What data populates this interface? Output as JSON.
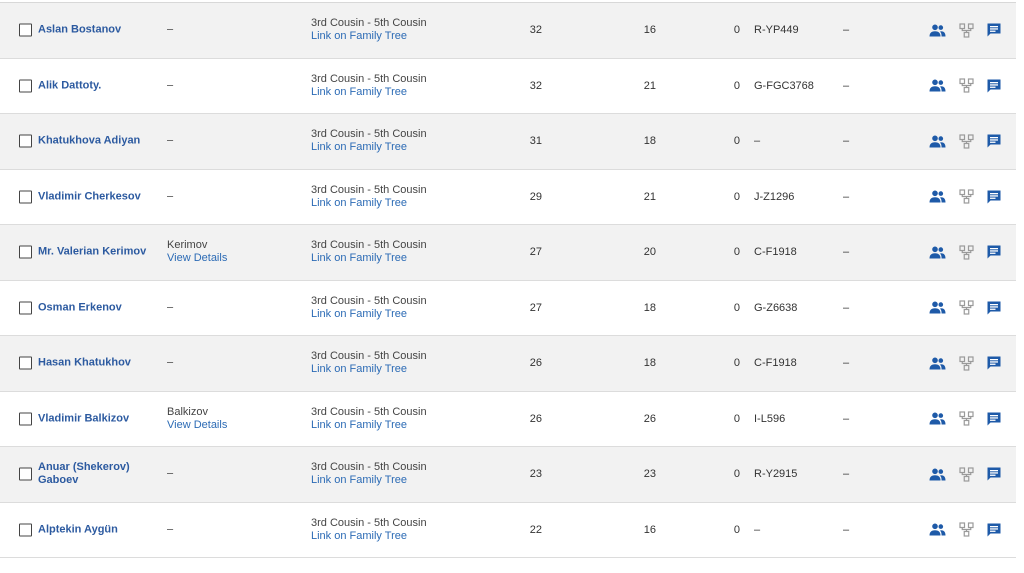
{
  "icons": {
    "people": "people-icon",
    "tree": "tree-icon",
    "message": "message-icon"
  },
  "colors": {
    "name_link": "#2c5aa0",
    "link": "#2c6bb5",
    "icon_blue": "#1e5aa8",
    "icon_gray": "#9a9a9a",
    "row_alt": "#f2f2f2"
  },
  "rows": [
    {
      "name": "Aslan Bostanov",
      "mgmt_dash": "–",
      "mgmt_surname": "",
      "mgmt_link": "",
      "relationship": "3rd Cousin - 5th Cousin",
      "rel_link": "Link on Family Tree",
      "v1": "32",
      "v2": "16",
      "v3": "0",
      "haplogroup": "R-YP449",
      "extra": "–"
    },
    {
      "name": "Alik Dattoty.",
      "mgmt_dash": "–",
      "mgmt_surname": "",
      "mgmt_link": "",
      "relationship": "3rd Cousin - 5th Cousin",
      "rel_link": "Link on Family Tree",
      "v1": "32",
      "v2": "21",
      "v3": "0",
      "haplogroup": "G-FGC3768",
      "extra": "–"
    },
    {
      "name": "Khatukhova Adiyan",
      "mgmt_dash": "–",
      "mgmt_surname": "",
      "mgmt_link": "",
      "relationship": "3rd Cousin - 5th Cousin",
      "rel_link": "Link on Family Tree",
      "v1": "31",
      "v2": "18",
      "v3": "0",
      "haplogroup": "–",
      "extra": "–"
    },
    {
      "name": "Vladimir Cherkesov",
      "mgmt_dash": "–",
      "mgmt_surname": "",
      "mgmt_link": "",
      "relationship": "3rd Cousin - 5th Cousin",
      "rel_link": "Link on Family Tree",
      "v1": "29",
      "v2": "21",
      "v3": "0",
      "haplogroup": "J-Z1296",
      "extra": "–"
    },
    {
      "name": "Mr. Valerian Kerimov",
      "mgmt_dash": "",
      "mgmt_surname": "Kerimov",
      "mgmt_link": "View Details",
      "relationship": "3rd Cousin - 5th Cousin",
      "rel_link": "Link on Family Tree",
      "v1": "27",
      "v2": "20",
      "v3": "0",
      "haplogroup": "C-F1918",
      "extra": "–"
    },
    {
      "name": "Osman Erkenov",
      "mgmt_dash": "–",
      "mgmt_surname": "",
      "mgmt_link": "",
      "relationship": "3rd Cousin - 5th Cousin",
      "rel_link": "Link on Family Tree",
      "v1": "27",
      "v2": "18",
      "v3": "0",
      "haplogroup": "G-Z6638",
      "extra": "–"
    },
    {
      "name": "Hasan Khatukhov",
      "mgmt_dash": "–",
      "mgmt_surname": "",
      "mgmt_link": "",
      "relationship": "3rd Cousin - 5th Cousin",
      "rel_link": "Link on Family Tree",
      "v1": "26",
      "v2": "18",
      "v3": "0",
      "haplogroup": "C-F1918",
      "extra": "–"
    },
    {
      "name": "Vladimir Balkizov",
      "mgmt_dash": "",
      "mgmt_surname": "Balkizov",
      "mgmt_link": "View Details",
      "relationship": "3rd Cousin - 5th Cousin",
      "rel_link": "Link on Family Tree",
      "v1": "26",
      "v2": "26",
      "v3": "0",
      "haplogroup": "I-L596",
      "extra": "–"
    },
    {
      "name": "Anuar (Shekerov) Gaboev",
      "mgmt_dash": "–",
      "mgmt_surname": "",
      "mgmt_link": "",
      "relationship": "3rd Cousin - 5th Cousin",
      "rel_link": "Link on Family Tree",
      "v1": "23",
      "v2": "23",
      "v3": "0",
      "haplogroup": "R-Y2915",
      "extra": "–"
    },
    {
      "name": "Alptekin Aygün",
      "mgmt_dash": "–",
      "mgmt_surname": "",
      "mgmt_link": "",
      "relationship": "3rd Cousin - 5th Cousin",
      "rel_link": "Link on Family Tree",
      "v1": "22",
      "v2": "16",
      "v3": "0",
      "haplogroup": "–",
      "extra": "–"
    }
  ]
}
